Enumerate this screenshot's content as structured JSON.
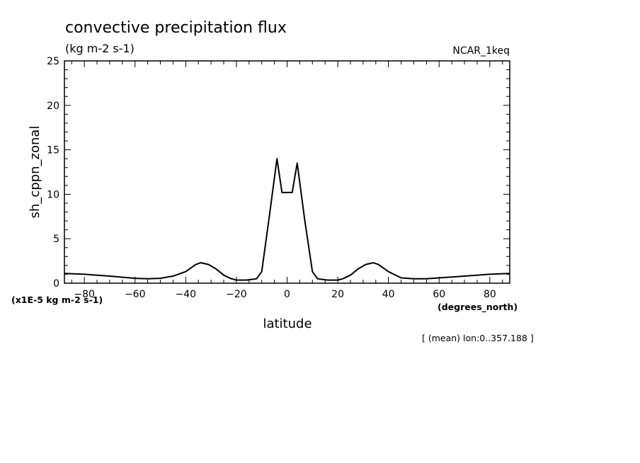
{
  "title": "convective precipitation flux",
  "units": "(kg m-2 s-1)",
  "dataset": "NCAR_1keq",
  "scale_note": "(x1E-5 kg m-2 s-1)",
  "x_units": "(degrees_north)",
  "footnote": "[ (mean) lon:0..357.188 ]",
  "chart_data": {
    "type": "line",
    "title": "convective precipitation flux",
    "xlabel": "latitude",
    "ylabel": "sh_cppn_zonal",
    "xlim": [
      -87.86,
      87.86
    ],
    "ylim": [
      0,
      25
    ],
    "x_ticks": [
      -80,
      -60,
      -40,
      -20,
      0,
      20,
      40,
      60,
      80
    ],
    "y_ticks": [
      0,
      5,
      10,
      15,
      20,
      25
    ],
    "grid": false,
    "series": [
      {
        "x": [
          -87.86,
          -80,
          -70,
          -60,
          -55,
          -50,
          -45,
          -40,
          -36,
          -34,
          -31,
          -28,
          -25,
          -22,
          -20,
          -16,
          -12,
          -10,
          -7,
          -4,
          -2,
          2,
          4,
          7,
          10,
          12,
          16,
          20,
          22,
          25,
          28,
          31,
          34,
          36,
          40,
          45,
          50,
          55,
          60,
          70,
          80,
          87.86
        ],
        "y": [
          1.1,
          1.0,
          0.8,
          0.55,
          0.5,
          0.55,
          0.8,
          1.3,
          2.1,
          2.3,
          2.1,
          1.6,
          0.9,
          0.5,
          0.35,
          0.35,
          0.5,
          1.3,
          7.5,
          14.0,
          10.2,
          10.2,
          13.5,
          7.0,
          1.3,
          0.5,
          0.35,
          0.35,
          0.5,
          0.9,
          1.6,
          2.1,
          2.3,
          2.1,
          1.3,
          0.6,
          0.5,
          0.5,
          0.6,
          0.8,
          1.0,
          1.1
        ]
      }
    ]
  }
}
